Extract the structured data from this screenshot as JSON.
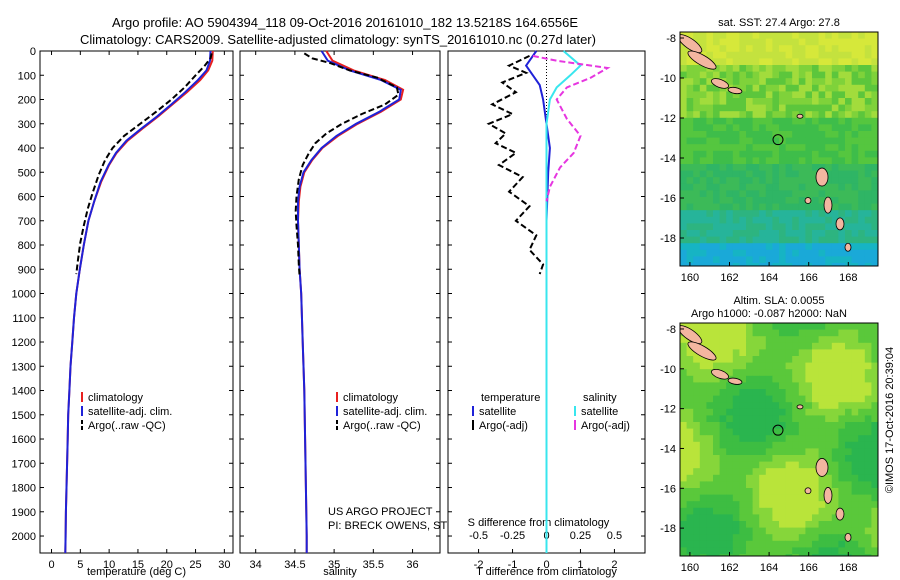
{
  "header": {
    "line1": "Argo profile: AO 5904394_118 09-Oct-2016 20161010_182 13.5218S 164.6556E",
    "line2": "Climatology: CARS2009. Satellite-adjusted climatology: synTS_20161010.nc (0.27d later)"
  },
  "depth_axis": {
    "ticks": [
      "0",
      "100",
      "200",
      "300",
      "400",
      "500",
      "600",
      "700",
      "800",
      "900",
      "1000",
      "1100",
      "1200",
      "1300",
      "1400",
      "1500",
      "1600",
      "1700",
      "1800",
      "1900",
      "2000"
    ],
    "range": [
      0,
      2070
    ]
  },
  "temp_panel": {
    "xlabel": "temperature (deg C)",
    "xticks": [
      "0",
      "5",
      "10",
      "15",
      "20",
      "25",
      "30"
    ],
    "xlim": [
      -2,
      31.5
    ],
    "legend": [
      "climatology",
      "satellite-adj. clim.",
      "Argo(..raw -QC)"
    ]
  },
  "sal_panel": {
    "xlabel": "salinity",
    "xticks": [
      "34",
      "34.5",
      "35",
      "35.5",
      "36"
    ],
    "xlim": [
      33.8,
      36.35
    ],
    "legend": [
      "climatology",
      "satellite-adj. clim.",
      "Argo(..raw -QC)"
    ],
    "project_line1": "US ARGO PROJECT",
    "project_line2": "PI: BRECK OWENS, STEVE JAYNE, P.E. ROBBINS"
  },
  "diff_panel": {
    "xlabel_bottom": "T difference from climatology",
    "xlabel_top": "S difference from climatology",
    "t_ticks": [
      "-2",
      "-1",
      "0",
      "1",
      "2"
    ],
    "s_ticks": [
      "-0.5",
      "-0.25",
      "0",
      "0.25",
      "0.5"
    ],
    "xlim": [
      -2.9,
      2.9
    ],
    "legend_temp_title": "temperature",
    "legend_sal_title": "salinity",
    "legend_temp": [
      "satellite",
      "Argo(-adj)"
    ],
    "legend_sal": [
      "satellite",
      "Argo(-adj)"
    ]
  },
  "map_top": {
    "title": "sat. SST: 27.4 Argo: 27.8",
    "yticks": [
      "-8",
      "-10",
      "-12",
      "-14",
      "-16",
      "-18"
    ],
    "xticks": [
      "160",
      "162",
      "164",
      "166",
      "168"
    ]
  },
  "map_bottom": {
    "title_line1": "Altim. SLA: 0.0055",
    "title_line2": "Argo h1000: -0.087 h2000: NaN",
    "yticks": [
      "-8",
      "-10",
      "-12",
      "-14",
      "-16",
      "-18"
    ],
    "xticks": [
      "160",
      "162",
      "164",
      "166",
      "168"
    ]
  },
  "side_label": "©IMOS 17-Oct-2016 20:39:04",
  "colors": {
    "climatology": "#e8201f",
    "satellite": "#1f22d8",
    "argo": "#000000",
    "sal_satellite": "#38e6ee",
    "sal_argo": "#e636e0",
    "land": "#f3b6a0"
  },
  "chart_data": [
    {
      "type": "line",
      "xlabel": "temperature (deg C)",
      "ylabel": "",
      "xlim": [
        -2,
        31.5
      ],
      "ylim": [
        2070,
        0
      ],
      "series": [
        {
          "name": "climatology",
          "points": [
            [
              28.0,
              0
            ],
            [
              27.9,
              40
            ],
            [
              27.2,
              80
            ],
            [
              25.8,
              120
            ],
            [
              23.5,
              170
            ],
            [
              21.0,
              220
            ],
            [
              18.5,
              270
            ],
            [
              15.8,
              320
            ],
            [
              13.2,
              370
            ],
            [
              11.3,
              420
            ],
            [
              10.0,
              470
            ],
            [
              8.6,
              540
            ],
            [
              7.4,
              620
            ],
            [
              6.4,
              700
            ],
            [
              5.6,
              800
            ],
            [
              4.9,
              900
            ],
            [
              4.3,
              1000
            ],
            [
              3.9,
              1100
            ],
            [
              3.6,
              1200
            ],
            [
              3.3,
              1300
            ],
            [
              3.1,
              1400
            ],
            [
              2.9,
              1500
            ],
            [
              2.8,
              1600
            ],
            [
              2.7,
              1700
            ],
            [
              2.6,
              1800
            ],
            [
              2.5,
              1900
            ],
            [
              2.45,
              2000
            ],
            [
              2.4,
              2070
            ]
          ]
        },
        {
          "name": "satellite-adj. clim.",
          "points": [
            [
              27.6,
              0
            ],
            [
              27.5,
              40
            ],
            [
              26.9,
              80
            ],
            [
              25.4,
              120
            ],
            [
              23.2,
              170
            ],
            [
              20.8,
              220
            ],
            [
              18.3,
              270
            ],
            [
              15.6,
              320
            ],
            [
              13.0,
              370
            ],
            [
              11.2,
              420
            ],
            [
              9.9,
              470
            ],
            [
              8.5,
              540
            ],
            [
              7.4,
              620
            ],
            [
              6.4,
              700
            ],
            [
              5.6,
              800
            ],
            [
              4.9,
              900
            ],
            [
              4.3,
              1000
            ],
            [
              3.9,
              1100
            ],
            [
              3.6,
              1200
            ],
            [
              3.3,
              1300
            ],
            [
              3.1,
              1400
            ],
            [
              2.9,
              1500
            ],
            [
              2.8,
              1600
            ],
            [
              2.7,
              1700
            ],
            [
              2.6,
              1800
            ],
            [
              2.5,
              1900
            ],
            [
              2.45,
              2000
            ],
            [
              2.4,
              2070
            ]
          ]
        },
        {
          "name": "Argo(..raw -QC)",
          "points": [
            [
              27.8,
              10
            ],
            [
              27.6,
              30
            ],
            [
              26.6,
              60
            ],
            [
              25.0,
              100
            ],
            [
              23.1,
              150
            ],
            [
              20.8,
              200
            ],
            [
              18.2,
              250
            ],
            [
              15.4,
              300
            ],
            [
              12.6,
              350
            ],
            [
              10.6,
              400
            ],
            [
              9.3,
              450
            ],
            [
              8.2,
              510
            ],
            [
              7.2,
              580
            ],
            [
              6.3,
              650
            ],
            [
              5.6,
              720
            ],
            [
              5.0,
              790
            ],
            [
              4.6,
              860
            ],
            [
              4.3,
              920
            ]
          ]
        }
      ]
    },
    {
      "type": "line",
      "xlabel": "salinity",
      "ylabel": "",
      "xlim": [
        33.8,
        36.35
      ],
      "ylim": [
        2070,
        0
      ],
      "series": [
        {
          "name": "climatology",
          "points": [
            [
              34.9,
              0
            ],
            [
              34.98,
              40
            ],
            [
              35.25,
              80
            ],
            [
              35.65,
              120
            ],
            [
              35.88,
              160
            ],
            [
              35.85,
              200
            ],
            [
              35.6,
              250
            ],
            [
              35.3,
              300
            ],
            [
              35.05,
              350
            ],
            [
              34.85,
              400
            ],
            [
              34.72,
              450
            ],
            [
              34.62,
              500
            ],
            [
              34.57,
              560
            ],
            [
              34.55,
              620
            ],
            [
              34.54,
              700
            ],
            [
              34.55,
              800
            ],
            [
              34.56,
              900
            ],
            [
              34.58,
              1000
            ],
            [
              34.6,
              1200
            ],
            [
              34.62,
              1400
            ],
            [
              34.63,
              1600
            ],
            [
              34.64,
              1800
            ],
            [
              34.65,
              2000
            ],
            [
              34.65,
              2070
            ]
          ]
        },
        {
          "name": "satellite-adj. clim.",
          "points": [
            [
              34.84,
              0
            ],
            [
              34.92,
              40
            ],
            [
              35.2,
              80
            ],
            [
              35.6,
              120
            ],
            [
              35.85,
              160
            ],
            [
              35.83,
              200
            ],
            [
              35.58,
              250
            ],
            [
              35.28,
              300
            ],
            [
              35.03,
              350
            ],
            [
              34.84,
              400
            ],
            [
              34.71,
              450
            ],
            [
              34.61,
              500
            ],
            [
              34.56,
              560
            ],
            [
              34.54,
              620
            ],
            [
              34.54,
              700
            ],
            [
              34.55,
              800
            ],
            [
              34.56,
              900
            ],
            [
              34.58,
              1000
            ],
            [
              34.6,
              1200
            ],
            [
              34.62,
              1400
            ],
            [
              34.63,
              1600
            ],
            [
              34.64,
              1800
            ],
            [
              34.65,
              2000
            ],
            [
              34.65,
              2070
            ]
          ]
        },
        {
          "name": "Argo(..raw -QC)",
          "points": [
            [
              34.62,
              10
            ],
            [
              34.72,
              30
            ],
            [
              34.95,
              50
            ],
            [
              35.2,
              80
            ],
            [
              35.55,
              110
            ],
            [
              35.8,
              150
            ],
            [
              35.82,
              180
            ],
            [
              35.65,
              220
            ],
            [
              35.35,
              260
            ],
            [
              35.1,
              300
            ],
            [
              34.9,
              340
            ],
            [
              34.76,
              380
            ],
            [
              34.68,
              420
            ],
            [
              34.6,
              470
            ],
            [
              34.55,
              530
            ],
            [
              34.52,
              600
            ],
            [
              34.51,
              660
            ],
            [
              34.52,
              720
            ],
            [
              34.54,
              800
            ],
            [
              34.55,
              880
            ],
            [
              34.56,
              930
            ]
          ]
        }
      ]
    },
    {
      "type": "line",
      "xlabel": "T difference from climatology",
      "ylabel": "",
      "xlim": [
        -2.9,
        2.9
      ],
      "ylim": [
        2070,
        0
      ],
      "series": [
        {
          "name": "temperature satellite",
          "points": [
            [
              -0.3,
              0
            ],
            [
              -0.6,
              60
            ],
            [
              -0.4,
              100
            ],
            [
              -0.2,
              140
            ],
            [
              -0.1,
              200
            ],
            [
              0.0,
              300
            ],
            [
              0.1,
              400
            ],
            [
              0.05,
              500
            ],
            [
              0.0,
              700
            ],
            [
              0.0,
              1000
            ],
            [
              0.0,
              2070
            ]
          ]
        },
        {
          "name": "temperature Argo(-adj)",
          "points": [
            [
              -0.5,
              20
            ],
            [
              -1.1,
              60
            ],
            [
              -0.6,
              90
            ],
            [
              -1.3,
              130
            ],
            [
              -0.9,
              170
            ],
            [
              -1.6,
              220
            ],
            [
              -1.0,
              260
            ],
            [
              -1.7,
              300
            ],
            [
              -1.2,
              340
            ],
            [
              -1.5,
              380
            ],
            [
              -0.9,
              420
            ],
            [
              -1.4,
              470
            ],
            [
              -0.7,
              520
            ],
            [
              -1.1,
              580
            ],
            [
              -0.5,
              640
            ],
            [
              -0.9,
              700
            ],
            [
              -0.3,
              760
            ],
            [
              -0.5,
              820
            ],
            [
              -0.1,
              880
            ],
            [
              -0.2,
              920
            ]
          ]
        },
        {
          "name": "salinity satellite",
          "points": [
            [
              0.5,
              0
            ],
            [
              1.0,
              60
            ],
            [
              0.7,
              100
            ],
            [
              0.3,
              150
            ],
            [
              0.1,
              200
            ],
            [
              0.0,
              300
            ],
            [
              0.0,
              2070
            ]
          ]
        },
        {
          "name": "salinity Argo(-adj)",
          "points": [
            [
              -0.4,
              20
            ],
            [
              0.3,
              40
            ],
            [
              1.8,
              70
            ],
            [
              1.3,
              110
            ],
            [
              0.6,
              150
            ],
            [
              0.3,
              200
            ],
            [
              0.6,
              280
            ],
            [
              1.0,
              350
            ],
            [
              0.8,
              420
            ],
            [
              0.4,
              480
            ],
            [
              0.1,
              560
            ],
            [
              0.0,
              620
            ]
          ]
        }
      ]
    }
  ]
}
